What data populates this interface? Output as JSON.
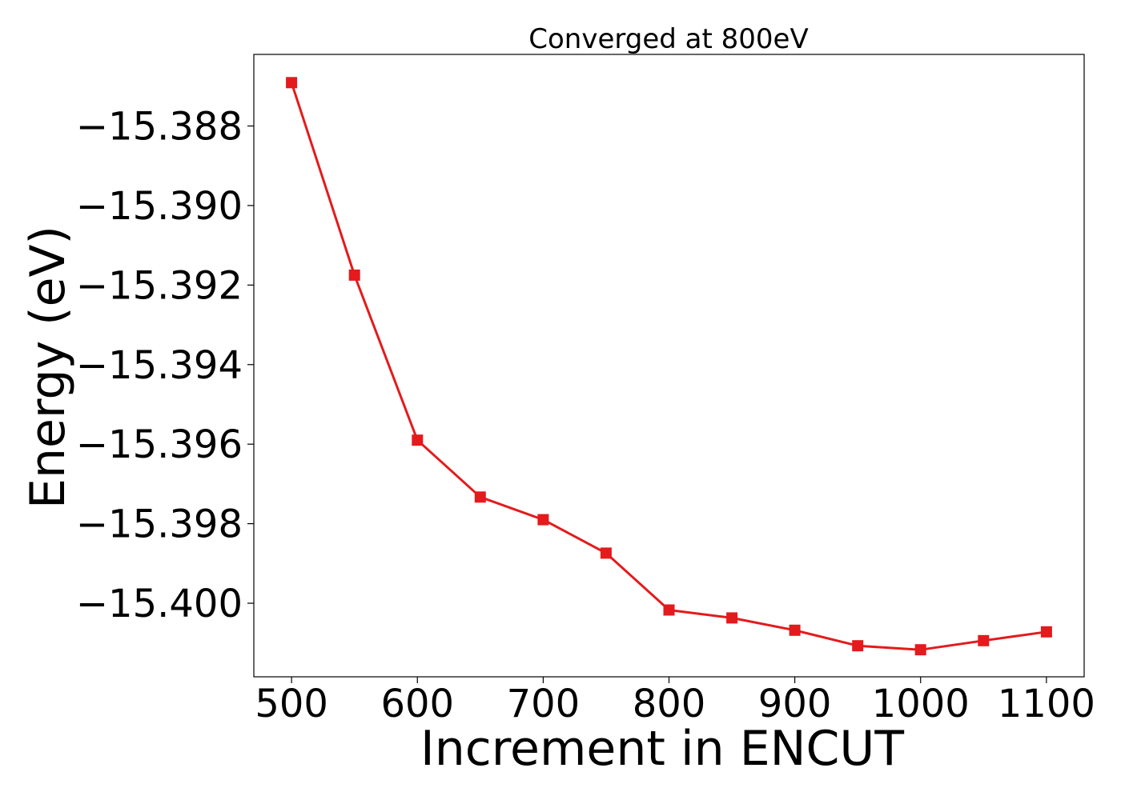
{
  "chart_data": {
    "type": "line",
    "title": "Converged at 800eV",
    "xlabel": "Increment in ENCUT",
    "ylabel": "Energy (eV)",
    "xlim": [
      470,
      1130
    ],
    "ylim": [
      -15.40185,
      -15.3862
    ],
    "xticks": [
      500,
      600,
      700,
      800,
      900,
      1000,
      1100
    ],
    "xtick_labels": [
      "500",
      "600",
      "700",
      "800",
      "900",
      "1000",
      "1100"
    ],
    "yticks": [
      -15.388,
      -15.39,
      -15.392,
      -15.394,
      -15.396,
      -15.398,
      -15.4
    ],
    "ytick_labels": [
      "−15.388",
      "−15.390",
      "−15.392",
      "−15.394",
      "−15.396",
      "−15.398",
      "−15.400"
    ],
    "grid": false,
    "legend": "none",
    "series": [
      {
        "color": "#e41a1c",
        "marker": "square",
        "x": [
          500,
          550,
          600,
          650,
          700,
          750,
          800,
          850,
          900,
          950,
          1000,
          1050,
          1100
        ],
        "y": [
          -15.38691,
          -15.39175,
          -15.3959,
          -15.39733,
          -15.3979,
          -15.39874,
          -15.40017,
          -15.40037,
          -15.40068,
          -15.40107,
          -15.40117,
          -15.40094,
          -15.40072
        ]
      }
    ]
  }
}
